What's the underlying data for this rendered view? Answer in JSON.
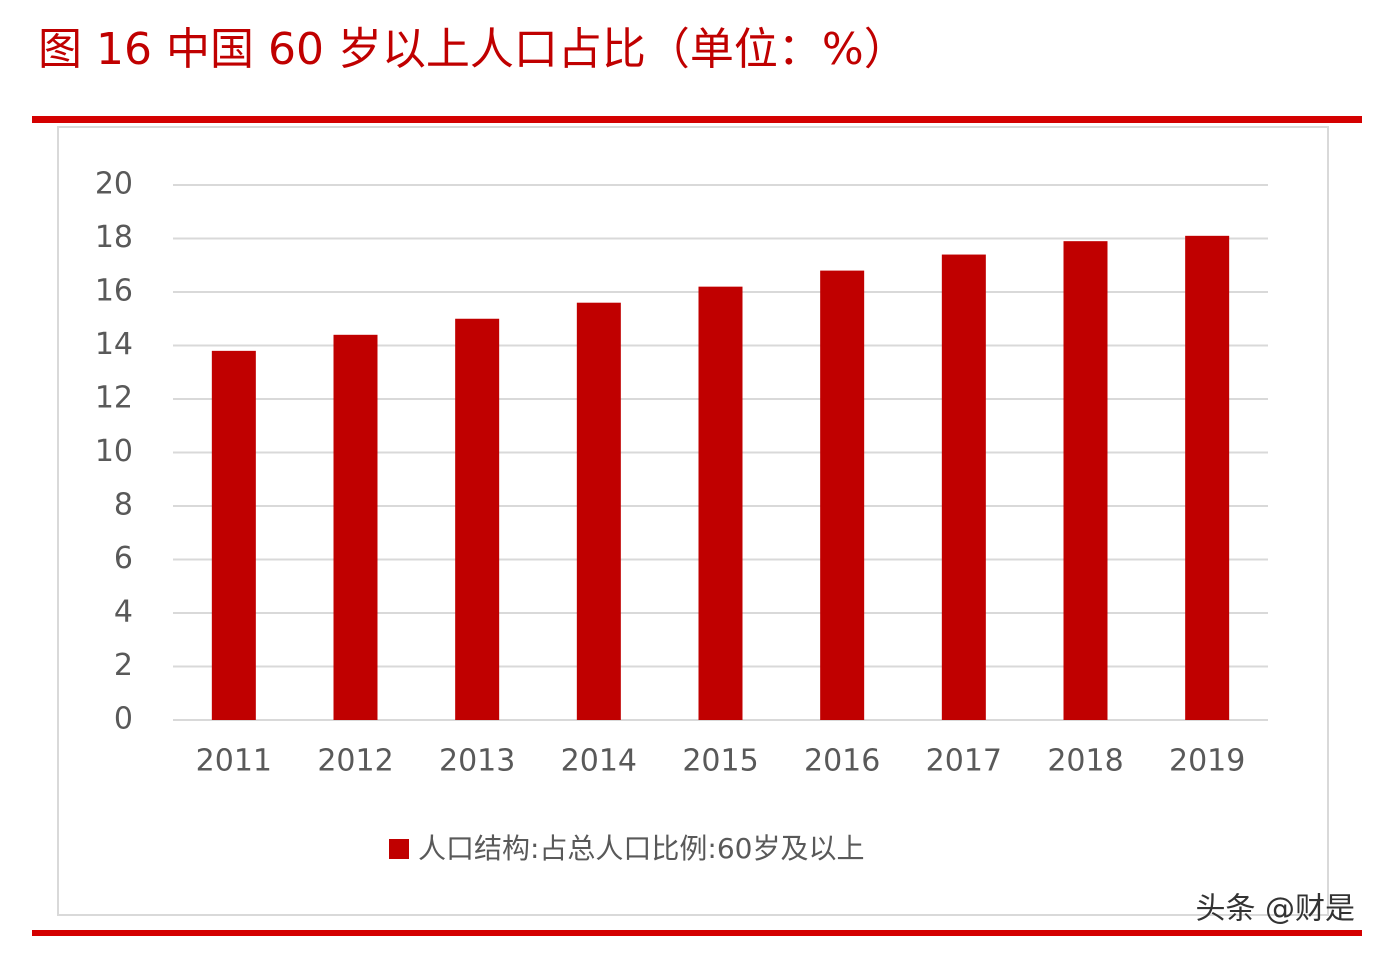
{
  "chart_data": {
    "type": "bar",
    "title": "图 16 中国 60 岁以上人口占比（单位：%）",
    "categories": [
      "2011",
      "2012",
      "2013",
      "2014",
      "2015",
      "2016",
      "2017",
      "2018",
      "2019"
    ],
    "series": [
      {
        "name": "人口结构:占总人口比例:60岁及以上",
        "color": "#c00000",
        "values": [
          13.8,
          14.4,
          15.0,
          15.6,
          16.2,
          16.8,
          17.4,
          17.9,
          18.1
        ]
      }
    ],
    "ylim": [
      0,
      20
    ],
    "yticks": [
      0,
      2,
      4,
      6,
      8,
      10,
      12,
      14,
      16,
      18,
      20
    ],
    "grid": true,
    "watermark": "头条 @财是"
  }
}
